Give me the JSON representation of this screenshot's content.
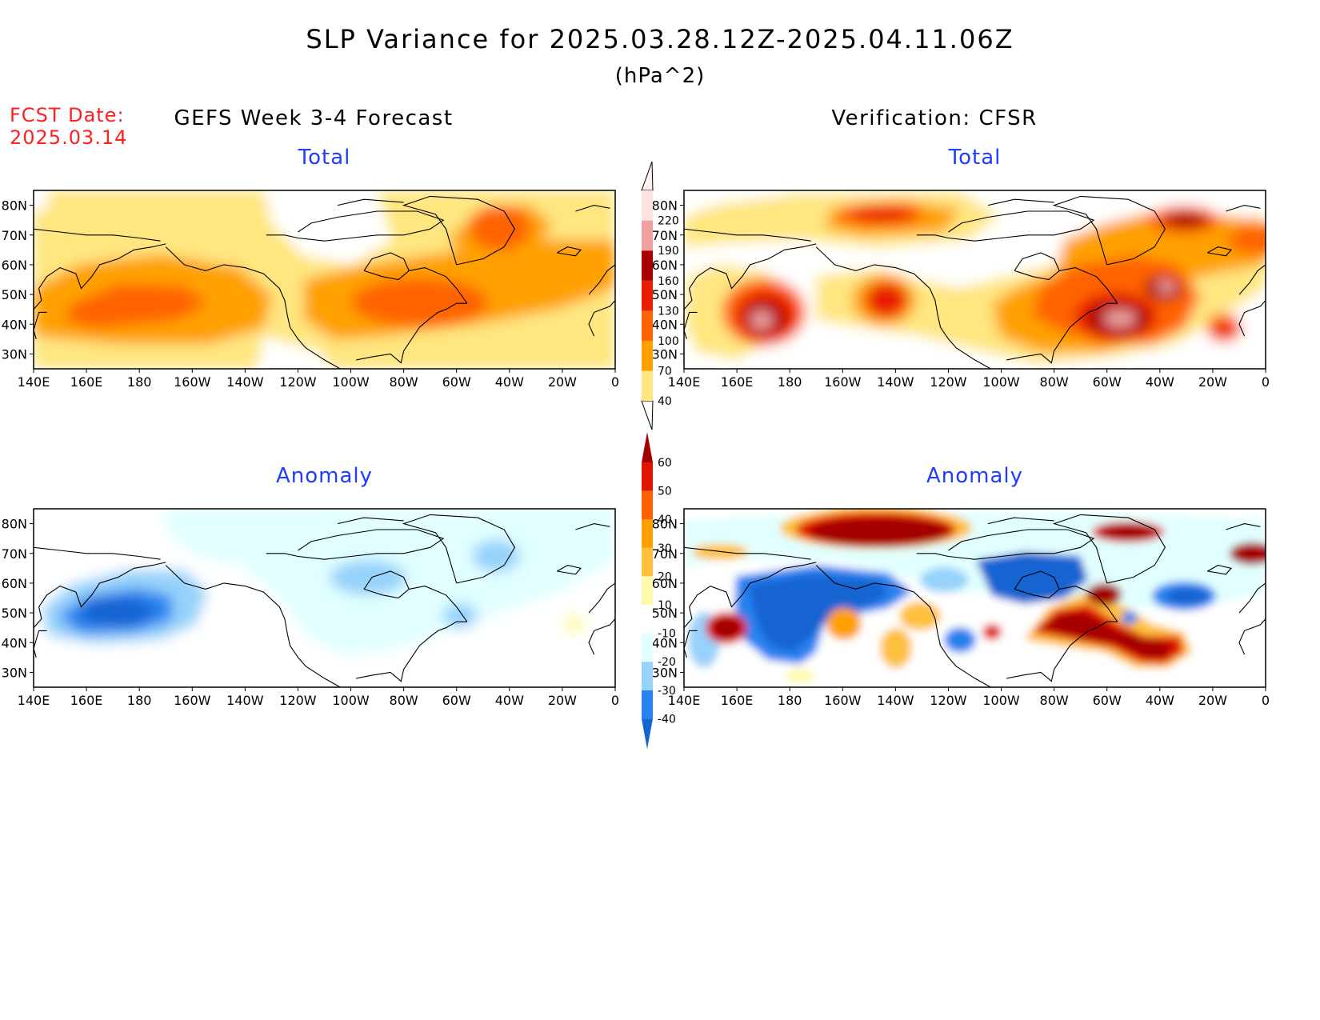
{
  "title": "SLP Variance for 2025.03.28.12Z-2025.04.11.06Z",
  "units": "(hPa^2)",
  "fcst_label": "FCST Date:",
  "fcst_date": "2025.03.14",
  "left_header": "GEFS Week 3-4 Forecast",
  "right_header": "Verification: CFSR",
  "panel_labels": {
    "total": "Total",
    "anomaly": "Anomaly"
  },
  "lon_ticks": [
    "140E",
    "160E",
    "180",
    "160W",
    "140W",
    "120W",
    "100W",
    "80W",
    "60W",
    "40W",
    "20W",
    "0"
  ],
  "lat_ticks": [
    "30N",
    "40N",
    "50N",
    "60N",
    "70N",
    "80N"
  ],
  "total_colorbar": {
    "levels": [
      "40",
      "70",
      "100",
      "130",
      "160",
      "190",
      "220"
    ],
    "colors": [
      "#ffe680",
      "#ffa000",
      "#ff6400",
      "#e81e00",
      "#a80000",
      "#f0a0a0",
      "#fde2e2"
    ]
  },
  "anomaly_colorbar": {
    "levels": [
      "-40",
      "-30",
      "-20",
      "-10",
      "10",
      "20",
      "30",
      "40",
      "50",
      "60"
    ],
    "colors": [
      "#1464d2",
      "#2882f0",
      "#96d2fa",
      "#e1ffff",
      "#ffffff",
      "#fffaaa",
      "#ffc03c",
      "#ffa000",
      "#ff6000",
      "#e11400",
      "#a50000"
    ]
  },
  "panels": [
    {
      "id": "forecast-total",
      "header": "left_header",
      "label": "total"
    },
    {
      "id": "verification-total",
      "header": "right_header",
      "label": "total"
    },
    {
      "id": "forecast-anomaly",
      "label": "anomaly"
    },
    {
      "id": "verification-anomaly",
      "label": "anomaly"
    }
  ]
}
